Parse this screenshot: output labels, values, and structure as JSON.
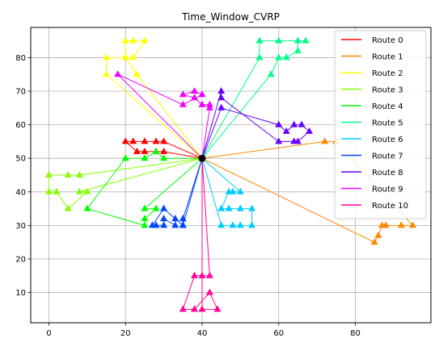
{
  "chart_data": {
    "type": "scatter",
    "title": "Time_Window_CVRP",
    "xlabel": "",
    "ylabel": "",
    "xlim": [
      -4.75,
      99.75
    ],
    "ylim": [
      1.0,
      89.0
    ],
    "xticks": [
      0,
      20,
      40,
      60,
      80
    ],
    "yticks": [
      10,
      20,
      30,
      40,
      50,
      60,
      70,
      80
    ],
    "grid": true,
    "legend_position": "top-right",
    "depot": [
      40,
      50
    ],
    "series": [
      {
        "name": "Route 0",
        "color": "#ff0000",
        "points": [
          [
            40,
            50
          ],
          [
            30,
            52
          ],
          [
            28,
            52
          ],
          [
            25,
            52
          ],
          [
            23,
            52
          ],
          [
            20,
            55
          ],
          [
            22,
            55
          ],
          [
            25,
            55
          ],
          [
            28,
            55
          ],
          [
            30,
            55
          ],
          [
            40,
            50
          ]
        ]
      },
      {
        "name": "Route 1",
        "color": "#ff8800",
        "points": [
          [
            40,
            50
          ],
          [
            72,
            55
          ],
          [
            75,
            55
          ],
          [
            95,
            30
          ],
          [
            92,
            30
          ],
          [
            88,
            30
          ],
          [
            87,
            30
          ],
          [
            86,
            27
          ],
          [
            85,
            25
          ],
          [
            40,
            50
          ]
        ]
      },
      {
        "name": "Route 2",
        "color": "#ffff00",
        "points": [
          [
            40,
            50
          ],
          [
            23,
            75
          ],
          [
            20,
            80
          ],
          [
            20,
            85
          ],
          [
            22,
            85
          ],
          [
            25,
            85
          ],
          [
            22,
            80
          ],
          [
            15,
            80
          ],
          [
            15,
            75
          ],
          [
            40,
            50
          ]
        ]
      },
      {
        "name": "Route 3",
        "color": "#88ff00",
        "points": [
          [
            40,
            50
          ],
          [
            8,
            40
          ],
          [
            10,
            40
          ],
          [
            5,
            35
          ],
          [
            2,
            40
          ],
          [
            0,
            40
          ],
          [
            0,
            45
          ],
          [
            5,
            45
          ],
          [
            8,
            45
          ],
          [
            40,
            50
          ]
        ]
      },
      {
        "name": "Route 4",
        "color": "#00ff00",
        "points": [
          [
            40,
            50
          ],
          [
            30,
            50
          ],
          [
            28,
            52
          ],
          [
            25,
            50
          ],
          [
            20,
            50
          ],
          [
            10,
            35
          ],
          [
            25,
            30
          ],
          [
            25,
            32
          ],
          [
            28,
            35
          ],
          [
            25,
            35
          ],
          [
            40,
            50
          ]
        ]
      },
      {
        "name": "Route 5",
        "color": "#00ff88",
        "points": [
          [
            40,
            50
          ],
          [
            58,
            75
          ],
          [
            60,
            80
          ],
          [
            62,
            80
          ],
          [
            65,
            82
          ],
          [
            65,
            85
          ],
          [
            67,
            85
          ],
          [
            60,
            85
          ],
          [
            55,
            85
          ],
          [
            55,
            80
          ],
          [
            40,
            50
          ]
        ]
      },
      {
        "name": "Route 6",
        "color": "#00ccff",
        "points": [
          [
            40,
            50
          ],
          [
            45,
            30
          ],
          [
            48,
            30
          ],
          [
            50,
            30
          ],
          [
            53,
            30
          ],
          [
            53,
            35
          ],
          [
            50,
            35
          ],
          [
            47,
            35
          ],
          [
            45,
            35
          ],
          [
            47,
            40
          ],
          [
            48,
            40
          ],
          [
            50,
            40
          ],
          [
            40,
            50
          ]
        ]
      },
      {
        "name": "Route 7",
        "color": "#0044ff",
        "points": [
          [
            40,
            50
          ],
          [
            35,
            32
          ],
          [
            35,
            30
          ],
          [
            33,
            32
          ],
          [
            33,
            30
          ],
          [
            30,
            32
          ],
          [
            30,
            30
          ],
          [
            28,
            30
          ],
          [
            27,
            30
          ],
          [
            30,
            35
          ],
          [
            35,
            30
          ],
          [
            40,
            50
          ]
        ]
      },
      {
        "name": "Route 8",
        "color": "#6600ff",
        "points": [
          [
            40,
            50
          ],
          [
            45,
            65
          ],
          [
            60,
            60
          ],
          [
            62,
            58
          ],
          [
            64,
            60
          ],
          [
            66,
            60
          ],
          [
            68,
            58
          ],
          [
            65,
            55
          ],
          [
            64,
            55
          ],
          [
            60,
            55
          ],
          [
            45,
            68
          ],
          [
            45,
            70
          ],
          [
            40,
            50
          ]
        ]
      },
      {
        "name": "Route 9",
        "color": "#ee00ff",
        "points": [
          [
            40,
            50
          ],
          [
            42,
            65
          ],
          [
            42,
            66
          ],
          [
            40,
            66
          ],
          [
            38,
            68
          ],
          [
            35,
            69
          ],
          [
            38,
            70
          ],
          [
            40,
            69
          ],
          [
            35,
            66
          ],
          [
            18,
            75
          ],
          [
            40,
            50
          ]
        ]
      },
      {
        "name": "Route 10",
        "color": "#ff0099",
        "points": [
          [
            40,
            50
          ],
          [
            40,
            5
          ],
          [
            44,
            5
          ],
          [
            42,
            10
          ],
          [
            38,
            5
          ],
          [
            35,
            5
          ],
          [
            38,
            15
          ],
          [
            40,
            15
          ],
          [
            42,
            15
          ],
          [
            40,
            50
          ]
        ]
      }
    ]
  }
}
